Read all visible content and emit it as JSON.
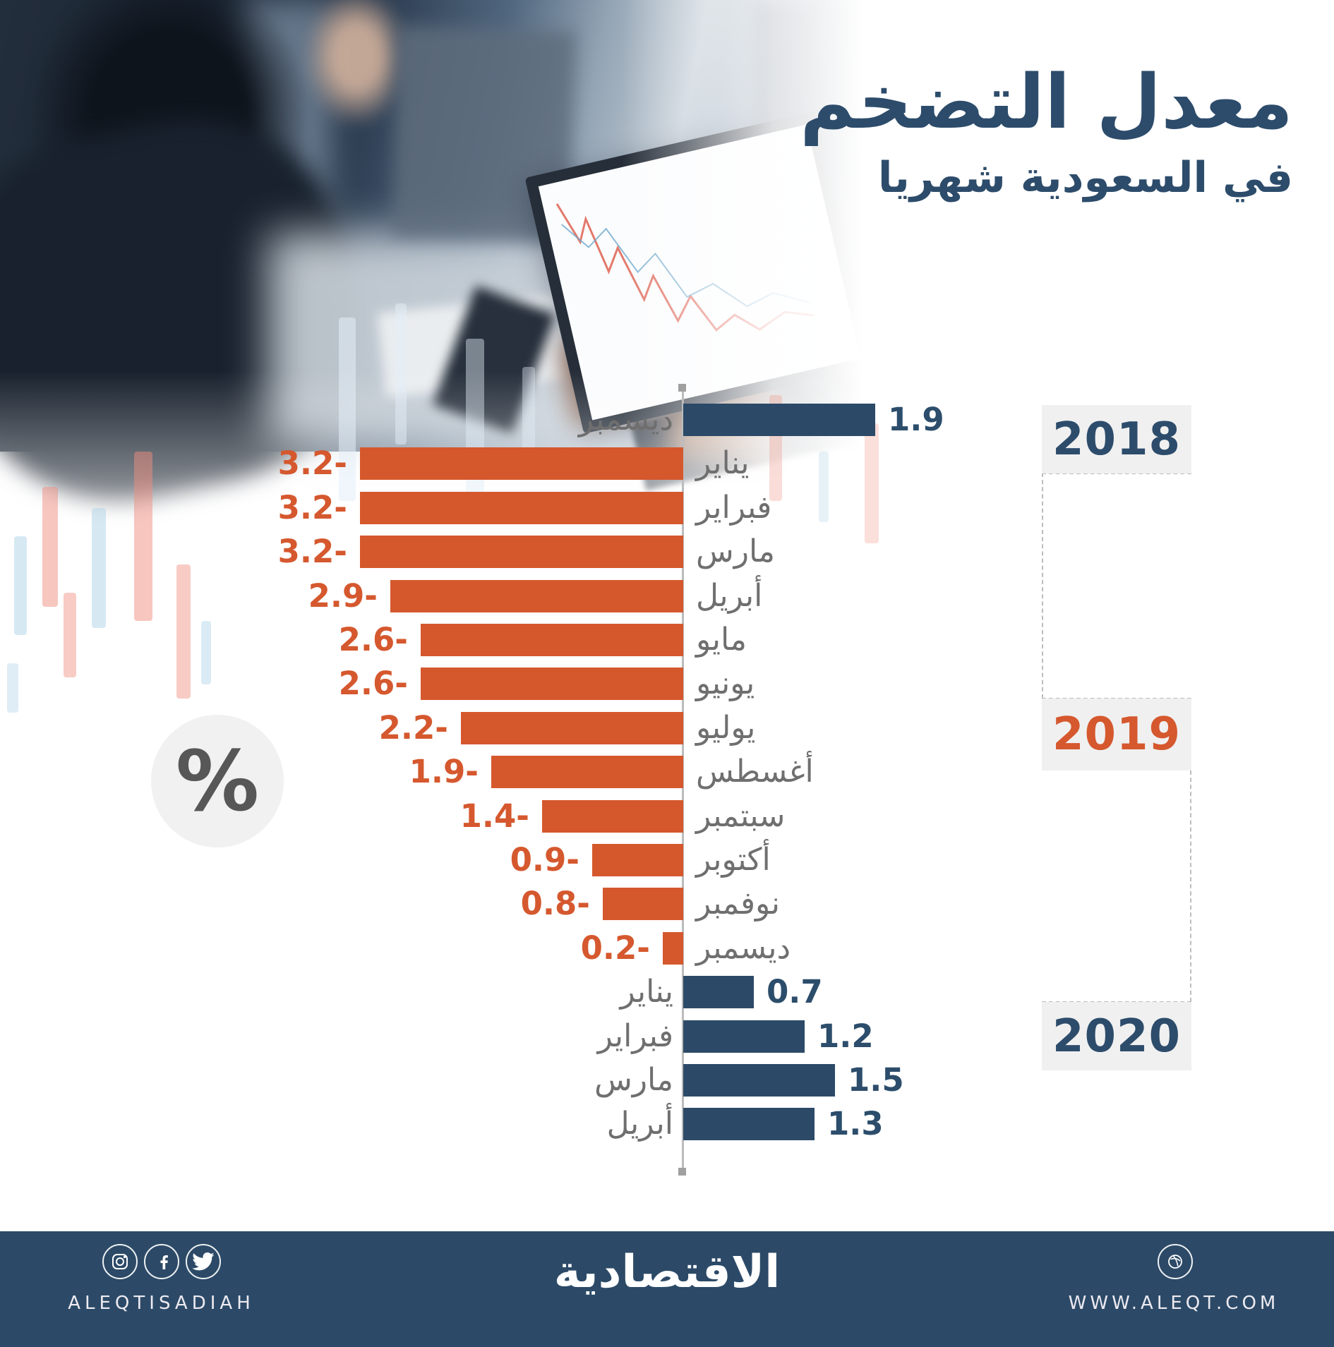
{
  "title": {
    "line1": "معدل التضخم",
    "line2": "في السعودية شهريا"
  },
  "unit_badge": "%",
  "chart_data": {
    "type": "bar",
    "orientation": "horizontal",
    "title": "معدل التضخم في السعودية شهريا",
    "unit": "%",
    "xlim": [
      -3.2,
      1.9
    ],
    "positive_color": "#2c4a68",
    "negative_color": "#d5582d",
    "positive_label_color": "#2c4d6b",
    "negative_label_color": "#d5582e",
    "month_label_color": "#6f6f6f",
    "rows": [
      {
        "month": "ديسمبر",
        "value": 1.9,
        "label": "1.9",
        "year": "2018"
      },
      {
        "month": "يناير",
        "value": -3.2,
        "label": "3.2-",
        "year": "2019"
      },
      {
        "month": "فبراير",
        "value": -3.2,
        "label": "3.2-",
        "year": "2019"
      },
      {
        "month": "مارس",
        "value": -3.2,
        "label": "3.2-",
        "year": "2019"
      },
      {
        "month": "أبريل",
        "value": -2.9,
        "label": "2.9-",
        "year": "2019"
      },
      {
        "month": "مايو",
        "value": -2.6,
        "label": "2.6-",
        "year": "2019"
      },
      {
        "month": "يونيو",
        "value": -2.6,
        "label": "2.6-",
        "year": "2019"
      },
      {
        "month": "يوليو",
        "value": -2.2,
        "label": "2.2-",
        "year": "2019"
      },
      {
        "month": "أغسطس",
        "value": -1.9,
        "label": "1.9-",
        "year": "2019"
      },
      {
        "month": "سبتمبر",
        "value": -1.4,
        "label": "1.4-",
        "year": "2019"
      },
      {
        "month": "أكتوبر",
        "value": -0.9,
        "label": "0.9-",
        "year": "2019"
      },
      {
        "month": "نوفمبر",
        "value": -0.8,
        "label": "0.8-",
        "year": "2019"
      },
      {
        "month": "ديسمبر",
        "value": -0.2,
        "label": "0.2-",
        "year": "2019"
      },
      {
        "month": "يناير",
        "value": 0.7,
        "label": "0.7",
        "year": "2020"
      },
      {
        "month": "فبراير",
        "value": 1.2,
        "label": "1.2",
        "year": "2020"
      },
      {
        "month": "مارس",
        "value": 1.5,
        "label": "1.5",
        "year": "2020"
      },
      {
        "month": "أبريل",
        "value": 1.3,
        "label": "1.3",
        "year": "2020"
      }
    ],
    "years": [
      {
        "label": "2018",
        "color": "#2d4c6b"
      },
      {
        "label": "2019",
        "color": "#d5582e"
      },
      {
        "label": "2020",
        "color": "#2d4c6b"
      }
    ]
  },
  "footer": {
    "social_handle": "ALEQTISADIAH",
    "brand": "الاقتصادية",
    "website": "WWW.ALEQT.COM",
    "icons": [
      "instagram-icon",
      "facebook-icon",
      "twitter-icon",
      "dribbble-icon"
    ],
    "background": "#2c4a67"
  }
}
